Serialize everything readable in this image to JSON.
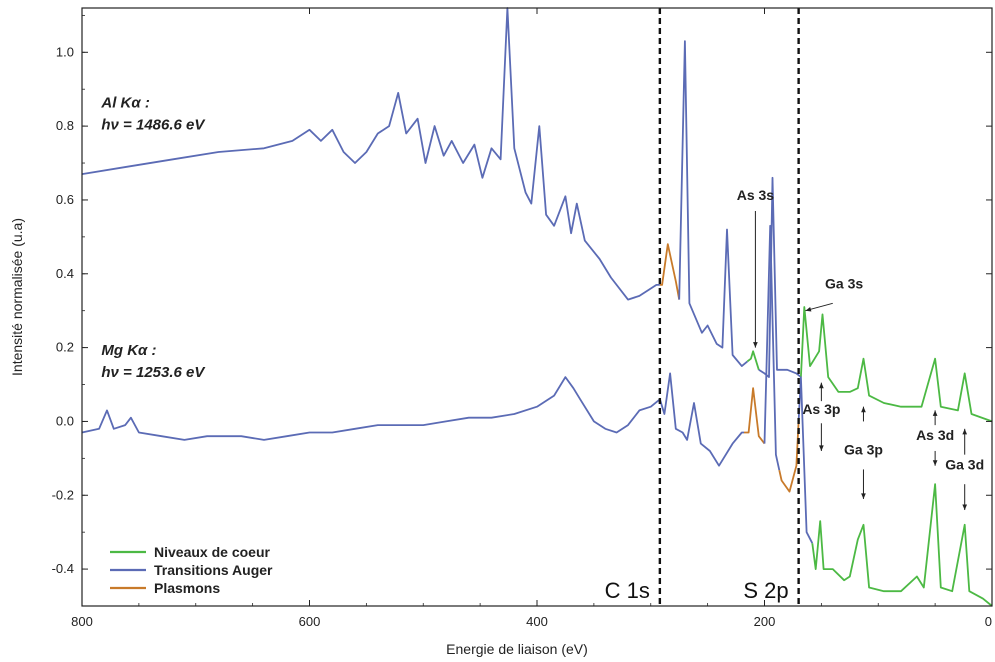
{
  "chart_data": {
    "type": "line",
    "xlabel": "Energie de liaison (eV)",
    "ylabel": "Intensité normalisée (u.a)",
    "xlim": [
      800,
      0
    ],
    "ylim": [
      -0.5,
      1.12
    ],
    "x_reversed": true,
    "x_ticks": [
      800,
      600,
      400,
      200,
      0
    ],
    "x_tick_labels": [
      "800",
      "600",
      "400",
      "200",
      "0"
    ],
    "y_ticks": [
      -0.4,
      -0.2,
      0.0,
      0.2,
      0.4,
      0.6,
      0.8,
      1.0
    ],
    "y_tick_labels": [
      "-0.4",
      "-0.2",
      "0.0",
      "0.2",
      "0.4",
      "0.6",
      "0.8",
      "1.0"
    ],
    "grid": false,
    "legend_position": "bottom-left",
    "legend": [
      {
        "name": "Niveaux de coeur",
        "color": "#4cb944"
      },
      {
        "name": "Transitions Auger",
        "color": "#5b6bb5"
      },
      {
        "name": "Plasmons",
        "color": "#c87a2a"
      }
    ],
    "series": [
      {
        "name": "Al Kα",
        "points": [
          [
            800,
            0.67
          ],
          [
            760,
            0.69
          ],
          [
            720,
            0.71
          ],
          [
            680,
            0.73
          ],
          [
            640,
            0.74
          ],
          [
            615,
            0.76
          ],
          [
            600,
            0.79
          ],
          [
            590,
            0.76
          ],
          [
            580,
            0.79
          ],
          [
            570,
            0.73
          ],
          [
            560,
            0.7
          ],
          [
            550,
            0.73
          ],
          [
            540,
            0.78
          ],
          [
            530,
            0.8
          ],
          [
            522,
            0.89
          ],
          [
            515,
            0.78
          ],
          [
            505,
            0.82
          ],
          [
            498,
            0.7
          ],
          [
            490,
            0.8
          ],
          [
            482,
            0.72
          ],
          [
            475,
            0.76
          ],
          [
            465,
            0.7
          ],
          [
            455,
            0.75
          ],
          [
            448,
            0.66
          ],
          [
            440,
            0.74
          ],
          [
            432,
            0.71
          ],
          [
            426,
            1.12
          ],
          [
            420,
            0.74
          ],
          [
            410,
            0.62
          ],
          [
            405,
            0.59
          ],
          [
            398,
            0.8
          ],
          [
            392,
            0.56
          ],
          [
            385,
            0.53
          ],
          [
            375,
            0.61
          ],
          [
            370,
            0.51
          ],
          [
            365,
            0.59
          ],
          [
            358,
            0.49
          ],
          [
            345,
            0.44
          ],
          [
            335,
            0.39
          ],
          [
            320,
            0.33
          ],
          [
            310,
            0.34
          ],
          [
            295,
            0.37
          ],
          [
            290,
            0.37
          ],
          [
            285,
            0.48
          ],
          [
            278,
            0.38
          ],
          [
            275,
            0.33
          ],
          [
            270,
            1.03
          ],
          [
            266,
            0.32
          ],
          [
            255,
            0.24
          ],
          [
            250,
            0.26
          ],
          [
            242,
            0.21
          ],
          [
            237,
            0.2
          ],
          [
            233,
            0.52
          ],
          [
            228,
            0.18
          ],
          [
            220,
            0.15
          ],
          [
            212,
            0.17
          ],
          [
            210,
            0.19
          ],
          [
            205,
            0.14
          ],
          [
            200,
            0.13
          ],
          [
            196,
            0.12
          ],
          [
            193,
            0.66
          ],
          [
            189,
            0.14
          ],
          [
            180,
            0.14
          ],
          [
            172,
            0.13
          ],
          [
            168,
            0.12
          ],
          [
            165,
            0.31
          ],
          [
            160,
            0.15
          ],
          [
            156,
            0.17
          ],
          [
            152,
            0.19
          ],
          [
            149,
            0.29
          ],
          [
            144,
            0.12
          ],
          [
            135,
            0.08
          ],
          [
            125,
            0.08
          ],
          [
            118,
            0.09
          ],
          [
            113,
            0.17
          ],
          [
            108,
            0.07
          ],
          [
            95,
            0.05
          ],
          [
            80,
            0.04
          ],
          [
            62,
            0.04
          ],
          [
            50,
            0.17
          ],
          [
            45,
            0.04
          ],
          [
            30,
            0.03
          ],
          [
            24,
            0.13
          ],
          [
            18,
            0.02
          ],
          [
            0,
            0.0
          ]
        ],
        "segments": [
          {
            "type": "Transitions Auger",
            "x_range": [
              800,
              292
            ]
          },
          {
            "type": "Plasmons",
            "x_range": [
              292,
              275
            ]
          },
          {
            "type": "Transitions Auger",
            "x_range": [
              275,
              215
            ]
          },
          {
            "type": "Niveaux de coeur",
            "x_range": [
              215,
              205
            ]
          },
          {
            "type": "Transitions Auger",
            "x_range": [
              205,
              168
            ]
          },
          {
            "type": "Niveaux de coeur",
            "x_range": [
              168,
              0
            ]
          }
        ]
      },
      {
        "name": "Mg Kα",
        "points": [
          [
            800,
            -0.03
          ],
          [
            785,
            -0.02
          ],
          [
            778,
            0.03
          ],
          [
            772,
            -0.02
          ],
          [
            762,
            -0.01
          ],
          [
            757,
            0.01
          ],
          [
            750,
            -0.03
          ],
          [
            730,
            -0.04
          ],
          [
            710,
            -0.05
          ],
          [
            690,
            -0.04
          ],
          [
            660,
            -0.04
          ],
          [
            640,
            -0.05
          ],
          [
            620,
            -0.04
          ],
          [
            600,
            -0.03
          ],
          [
            580,
            -0.03
          ],
          [
            560,
            -0.02
          ],
          [
            540,
            -0.01
          ],
          [
            520,
            -0.01
          ],
          [
            500,
            -0.01
          ],
          [
            480,
            0.0
          ],
          [
            460,
            0.01
          ],
          [
            440,
            0.01
          ],
          [
            420,
            0.02
          ],
          [
            400,
            0.04
          ],
          [
            385,
            0.07
          ],
          [
            375,
            0.12
          ],
          [
            368,
            0.09
          ],
          [
            362,
            0.06
          ],
          [
            350,
            0.0
          ],
          [
            340,
            -0.02
          ],
          [
            330,
            -0.03
          ],
          [
            320,
            -0.01
          ],
          [
            310,
            0.03
          ],
          [
            300,
            0.04
          ],
          [
            292,
            0.06
          ],
          [
            288,
            0.02
          ],
          [
            283,
            0.13
          ],
          [
            278,
            -0.02
          ],
          [
            272,
            -0.03
          ],
          [
            268,
            -0.05
          ],
          [
            262,
            0.05
          ],
          [
            256,
            -0.06
          ],
          [
            248,
            -0.08
          ],
          [
            240,
            -0.12
          ],
          [
            228,
            -0.06
          ],
          [
            220,
            -0.03
          ],
          [
            214,
            -0.03
          ],
          [
            210,
            0.09
          ],
          [
            205,
            -0.04
          ],
          [
            200,
            -0.06
          ],
          [
            195,
            0.53
          ],
          [
            190,
            -0.09
          ],
          [
            185,
            -0.16
          ],
          [
            178,
            -0.19
          ],
          [
            172,
            -0.12
          ],
          [
            168,
            0.12
          ],
          [
            163,
            -0.3
          ],
          [
            158,
            -0.33
          ],
          [
            155,
            -0.4
          ],
          [
            151,
            -0.27
          ],
          [
            148,
            -0.4
          ],
          [
            140,
            -0.4
          ],
          [
            130,
            -0.43
          ],
          [
            125,
            -0.42
          ],
          [
            118,
            -0.32
          ],
          [
            113,
            -0.28
          ],
          [
            108,
            -0.45
          ],
          [
            95,
            -0.46
          ],
          [
            80,
            -0.46
          ],
          [
            66,
            -0.42
          ],
          [
            60,
            -0.45
          ],
          [
            50,
            -0.17
          ],
          [
            45,
            -0.45
          ],
          [
            35,
            -0.46
          ],
          [
            24,
            -0.28
          ],
          [
            20,
            -0.46
          ],
          [
            8,
            -0.48
          ],
          [
            0,
            -0.5
          ]
        ],
        "segments": [
          {
            "type": "Transitions Auger",
            "x_range": [
              800,
              218
            ]
          },
          {
            "type": "Plasmons",
            "x_range": [
              218,
              200
            ]
          },
          {
            "type": "Transitions Auger",
            "x_range": [
              200,
              187
            ]
          },
          {
            "type": "Plasmons",
            "x_range": [
              187,
              170
            ]
          },
          {
            "type": "Transitions Auger",
            "x_range": [
              170,
              158
            ]
          },
          {
            "type": "Niveaux de coeur",
            "x_range": [
              158,
              0
            ]
          }
        ]
      }
    ],
    "vlines": [
      {
        "x": 292,
        "label": "C 1s",
        "style": "dashed"
      },
      {
        "x": 170,
        "label": "S 2p",
        "style": "dashed"
      }
    ],
    "annotations": [
      {
        "lines": [
          "Al Kα :",
          "hν = 1486.6 eV"
        ],
        "x": 790,
        "y": 0.85
      },
      {
        "lines": [
          "Mg Kα :",
          "hν = 1253.6 eV"
        ],
        "x": 790,
        "y": 0.18
      },
      {
        "text": "As 3s",
        "x": 208,
        "y": 0.6
      },
      {
        "text": "Ga 3s",
        "x": 130,
        "y": 0.36
      },
      {
        "text": "As 3p",
        "x": 150,
        "y": 0.02
      },
      {
        "text": "Ga 3p",
        "x": 113,
        "y": -0.09
      },
      {
        "text": "As 3d",
        "x": 50,
        "y": -0.05
      },
      {
        "text": "Ga 3d",
        "x": 24,
        "y": -0.13
      }
    ]
  }
}
